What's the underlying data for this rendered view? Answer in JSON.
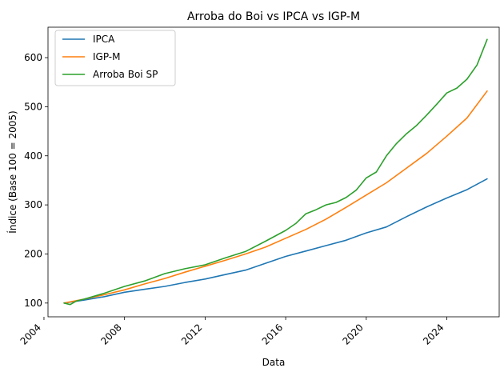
{
  "chart_data": {
    "type": "line",
    "title": "Arroba do Boi vs IPCA vs IGP-M",
    "xlabel": "Data",
    "ylabel": "Índice (Base 100 = 2005)",
    "xlim": [
      2004.2,
      2026.6
    ],
    "ylim": [
      72,
      662
    ],
    "xticks": [
      2004,
      2008,
      2012,
      2016,
      2020,
      2024
    ],
    "xtick_labels": [
      "2004",
      "2008",
      "2012",
      "2016",
      "2020",
      "2024"
    ],
    "yticks": [
      100,
      200,
      300,
      400,
      500,
      600
    ],
    "ytick_labels": [
      "100",
      "200",
      "300",
      "400",
      "500",
      "600"
    ],
    "grid": false,
    "legend_position": "top-left",
    "series": [
      {
        "name": "IPCA",
        "color": "#1f77b4",
        "x": [
          2005,
          2006,
          2007,
          2008,
          2009,
          2010,
          2011,
          2012,
          2013,
          2014,
          2015,
          2016,
          2017,
          2018,
          2019,
          2020,
          2021,
          2022,
          2023,
          2024,
          2025,
          2026
        ],
        "y": [
          100,
          106,
          113,
          122,
          128,
          134,
          142,
          149,
          158,
          167,
          181,
          195,
          206,
          217,
          228,
          243,
          255,
          276,
          296,
          314,
          331,
          353
        ]
      },
      {
        "name": "IGP-M",
        "color": "#ff7f0e",
        "x": [
          2005,
          2006,
          2007,
          2008,
          2009,
          2010,
          2011,
          2012,
          2013,
          2014,
          2015,
          2016,
          2017,
          2018,
          2019,
          2020,
          2021,
          2022,
          2023,
          2024,
          2025,
          2026
        ],
        "y": [
          100,
          108,
          117,
          127,
          139,
          150,
          163,
          175,
          187,
          200,
          214,
          232,
          250,
          271,
          295,
          320,
          345,
          375,
          405,
          440,
          477,
          532
        ]
      },
      {
        "name": "Arroba Boi SP",
        "color": "#2ca02c",
        "x": [
          2005,
          2005.3,
          2005.6,
          2006,
          2007,
          2008,
          2009,
          2010,
          2011,
          2012,
          2013,
          2014,
          2015,
          2016,
          2016.5,
          2017,
          2017.5,
          2018,
          2018.5,
          2019,
          2019.5,
          2020,
          2020.5,
          2021,
          2021.5,
          2022,
          2022.5,
          2023,
          2023.5,
          2024,
          2024.5,
          2025,
          2025.5,
          2026
        ],
        "y": [
          100,
          97,
          104,
          108,
          120,
          134,
          145,
          160,
          170,
          178,
          192,
          205,
          226,
          248,
          262,
          282,
          290,
          300,
          305,
          315,
          330,
          355,
          367,
          400,
          425,
          445,
          462,
          483,
          505,
          528,
          538,
          556,
          585,
          637
        ]
      }
    ]
  }
}
